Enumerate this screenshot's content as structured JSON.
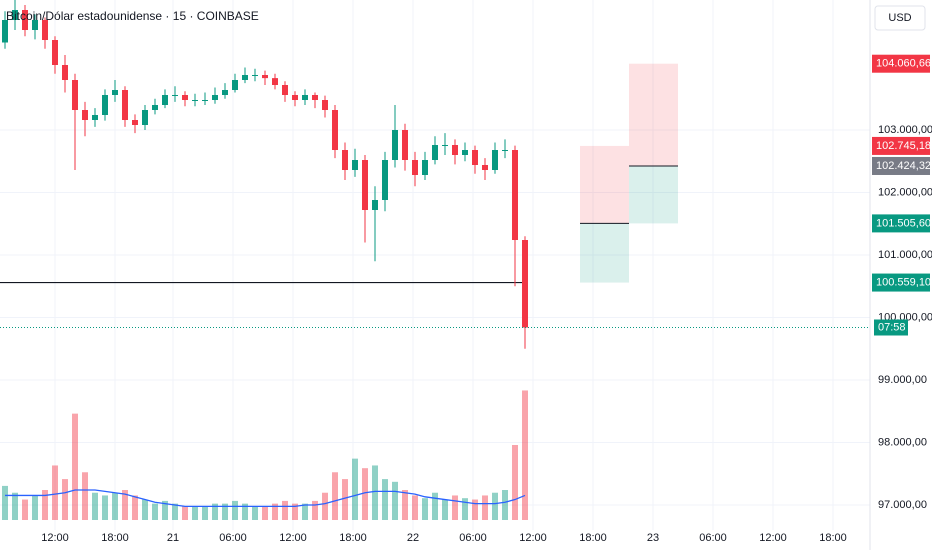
{
  "chart_data": {
    "type": "candlestick",
    "title": "Bitcoin/Dólar estadounidense · 15 · COINBASE",
    "currency": "USD",
    "up_color": "#089981",
    "down_color": "#f23645",
    "ylim": [
      96600,
      105080
    ],
    "yticks": [
      {
        "value": 97000,
        "label": "97.000,00"
      },
      {
        "value": 98000,
        "label": "98.000,00"
      },
      {
        "value": 99000,
        "label": "99.000,00"
      },
      {
        "value": 100000,
        "label": "100.000,00"
      },
      {
        "value": 101000,
        "label": "101.000,00"
      },
      {
        "value": 102000,
        "label": "102.000,00"
      },
      {
        "value": 103000,
        "label": "103.000,00"
      }
    ],
    "xlim": [
      0,
      87
    ],
    "xticks": [
      {
        "value": 5.5,
        "label": "12:00"
      },
      {
        "value": 11.5,
        "label": "18:00"
      },
      {
        "value": 17.3,
        "label": "21"
      },
      {
        "value": 23.3,
        "label": "06:00"
      },
      {
        "value": 29.3,
        "label": "12:00"
      },
      {
        "value": 35.3,
        "label": "18:00"
      },
      {
        "value": 41.3,
        "label": "22"
      },
      {
        "value": 47.3,
        "label": "06:00"
      },
      {
        "value": 53.3,
        "label": "12:00"
      },
      {
        "value": 59.3,
        "label": "18:00"
      },
      {
        "value": 65.3,
        "label": "23"
      },
      {
        "value": 71.3,
        "label": "06:00"
      },
      {
        "value": 77.3,
        "label": "12:00"
      },
      {
        "value": 83.3,
        "label": "18:00"
      }
    ],
    "grid": true,
    "open": [
      104400,
      104760,
      104920,
      104600,
      104760,
      104440,
      104040,
      103800,
      103320,
      103160,
      103240,
      103560,
      103640,
      103160,
      103080,
      103320,
      103400,
      103560,
      103560,
      103480,
      103480,
      103480,
      103560,
      103640,
      103800,
      103880,
      103880,
      103830,
      103720,
      103560,
      103480,
      103560,
      103480,
      103320,
      102680,
      102360,
      102520,
      101720,
      101880,
      102520,
      103000,
      102520,
      102280,
      102520,
      102760,
      102760,
      102600,
      102680,
      102440,
      102360,
      102680,
      102680,
      101240
    ],
    "high": [
      104900,
      105100,
      105000,
      104850,
      104800,
      104500,
      104200,
      103900,
      103450,
      103350,
      103650,
      103800,
      103700,
      103250,
      103400,
      103500,
      103650,
      103700,
      103620,
      103580,
      103600,
      103680,
      103750,
      103900,
      104000,
      103980,
      103950,
      103900,
      103780,
      103620,
      103650,
      103600,
      103550,
      103400,
      102800,
      102700,
      102600,
      102100,
      102650,
      103400,
      103100,
      102650,
      102650,
      102900,
      102950,
      102850,
      102800,
      102750,
      102550,
      102800,
      102850,
      102750,
      101300
    ],
    "low": [
      104300,
      104600,
      104500,
      104450,
      104300,
      103900,
      103600,
      102360,
      102900,
      103050,
      103150,
      103450,
      103050,
      102950,
      103000,
      103250,
      103350,
      103450,
      103380,
      103380,
      103400,
      103420,
      103500,
      103600,
      103750,
      103780,
      103720,
      103650,
      103450,
      103380,
      103400,
      103350,
      103200,
      102550,
      102200,
      102250,
      101200,
      100900,
      101700,
      102400,
      102350,
      102100,
      102200,
      102450,
      102600,
      102450,
      102500,
      102300,
      102200,
      102300,
      102550,
      100500,
      99500
    ],
    "close": [
      104760,
      104920,
      104600,
      104760,
      104440,
      104040,
      103800,
      103320,
      103160,
      103240,
      103560,
      103640,
      103160,
      103080,
      103320,
      103400,
      103560,
      103560,
      103480,
      103480,
      103480,
      103560,
      103640,
      103800,
      103880,
      103880,
      103830,
      103720,
      103560,
      103480,
      103560,
      103480,
      103320,
      102680,
      102360,
      102520,
      101720,
      101880,
      102520,
      103000,
      102520,
      102280,
      102520,
      102760,
      102760,
      102600,
      102680,
      102440,
      102360,
      102680,
      102680,
      101240,
      99840
    ],
    "volume": [
      25,
      20,
      15,
      18,
      22,
      40,
      30,
      78,
      35,
      20,
      18,
      20,
      22,
      18,
      15,
      12,
      14,
      12,
      10,
      10,
      10,
      12,
      12,
      14,
      12,
      10,
      10,
      12,
      14,
      12,
      12,
      14,
      20,
      35,
      30,
      45,
      38,
      40,
      30,
      28,
      22,
      18,
      16,
      20,
      15,
      18,
      16,
      15,
      18,
      20,
      22,
      55,
      95
    ],
    "volume_ma": [
      18,
      18,
      18,
      18,
      18,
      19,
      20,
      22,
      22,
      22,
      21,
      20,
      19,
      17,
      15,
      13,
      12,
      11,
      10,
      10,
      10,
      10,
      10,
      10,
      10,
      10,
      10,
      10,
      10,
      10,
      11,
      11,
      12,
      14,
      16,
      18,
      20,
      21,
      21,
      21,
      20,
      19,
      17,
      16,
      15,
      14,
      13,
      12,
      12,
      12,
      13,
      15,
      18
    ],
    "vlim": [
      0,
      110
    ],
    "volume_ma_color": "#2962ff",
    "horizontal_line": 100559.1,
    "price_labels": [
      {
        "value": 104060.66,
        "label": "104.060,66",
        "color": "#f23645"
      },
      {
        "value": 102745.18,
        "label": "102.745,18",
        "color": "#f23645"
      },
      {
        "value": 102424.32,
        "label": "102.424,32",
        "color": "#787b86"
      },
      {
        "value": 101505.6,
        "label": "101.505,60",
        "color": "#089981"
      },
      {
        "value": 100559.1,
        "label": "100.559,10",
        "color": "#089981"
      }
    ],
    "countdown": "07:58",
    "positions": [
      {
        "x_start": 58,
        "x_end": 62.9,
        "stop": 102745.18,
        "entry": 101505.6,
        "target": 100559.1
      },
      {
        "x_start": 62.9,
        "x_end": 67.8,
        "stop": 104060.66,
        "entry": 102424.32,
        "target": 101505.6
      }
    ]
  }
}
